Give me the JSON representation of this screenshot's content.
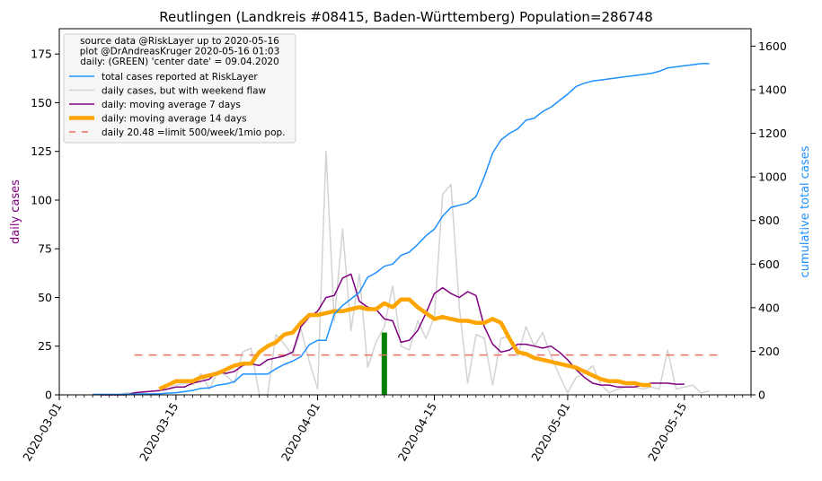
{
  "chart_data": {
    "type": "line",
    "title": "Reutlingen (Landkreis #08415, Baden-Württemberg) Population=286748",
    "ylabel_left": "daily cases",
    "ylabel_right": "cumulative total cases",
    "xlabel": "",
    "x_ticks": [
      "2020-03-01",
      "2020-03-15",
      "2020-04-01",
      "2020-04-15",
      "2020-05-01",
      "2020-05-15"
    ],
    "y_left_ticks": [
      "0",
      "25",
      "50",
      "75",
      "100",
      "125",
      "150",
      "175"
    ],
    "y_right_ticks": [
      "0",
      "200",
      "400",
      "600",
      "800",
      "1000",
      "1200",
      "1400",
      "1600"
    ],
    "ylim_left": [
      0,
      188
    ],
    "ylim_right": [
      0,
      1680
    ],
    "xlim": [
      "2020-03-01",
      "2020-05-23"
    ],
    "grid": false,
    "legend_position": "top-left",
    "legend_header": [
      "source data @RiskLayer up to 2020-05-16",
      "plot @DrAndreasKruger 2020-05-16 01:03",
      "daily: (GREEN) 'center date' = 09.04.2020"
    ],
    "colors": {
      "total": "#1e90ff",
      "daily": "#d3d3d3",
      "ma7": "#800080",
      "ma14": "#ffa500",
      "limit": "#ec7063",
      "center": "#008000",
      "left_label": "#800080",
      "right_label": "#1e90ff"
    },
    "center_date": "2020-04-09",
    "center_value": 32,
    "series": [
      {
        "name": "total cases reported at RiskLayer",
        "key": "total",
        "axis": "right",
        "x": [
          "2020-03-05",
          "2020-03-06",
          "2020-03-07",
          "2020-03-08",
          "2020-03-09",
          "2020-03-10",
          "2020-03-11",
          "2020-03-12",
          "2020-03-13",
          "2020-03-14",
          "2020-03-15",
          "2020-03-16",
          "2020-03-17",
          "2020-03-18",
          "2020-03-19",
          "2020-03-20",
          "2020-03-21",
          "2020-03-22",
          "2020-03-23",
          "2020-03-24",
          "2020-03-25",
          "2020-03-26",
          "2020-03-27",
          "2020-03-28",
          "2020-03-29",
          "2020-03-30",
          "2020-03-31",
          "2020-04-01",
          "2020-04-02",
          "2020-04-03",
          "2020-04-04",
          "2020-04-05",
          "2020-04-06",
          "2020-04-07",
          "2020-04-08",
          "2020-04-09",
          "2020-04-10",
          "2020-04-11",
          "2020-04-12",
          "2020-04-13",
          "2020-04-14",
          "2020-04-15",
          "2020-04-16",
          "2020-04-17",
          "2020-04-18",
          "2020-04-19",
          "2020-04-20",
          "2020-04-21",
          "2020-04-22",
          "2020-04-23",
          "2020-04-24",
          "2020-04-25",
          "2020-04-26",
          "2020-04-27",
          "2020-04-28",
          "2020-04-29",
          "2020-04-30",
          "2020-05-01",
          "2020-05-02",
          "2020-05-03",
          "2020-05-04",
          "2020-05-05",
          "2020-05-06",
          "2020-05-07",
          "2020-05-08",
          "2020-05-09",
          "2020-05-10",
          "2020-05-11",
          "2020-05-12",
          "2020-05-13",
          "2020-05-14",
          "2020-05-15",
          "2020-05-16",
          "2020-05-17",
          "2020-05-18"
        ],
        "values": [
          2,
          2,
          2,
          2,
          3,
          3,
          4,
          4,
          5,
          8,
          10,
          15,
          20,
          30,
          32,
          45,
          50,
          60,
          95,
          95,
          95,
          95,
          120,
          140,
          155,
          175,
          230,
          250,
          250,
          370,
          410,
          440,
          470,
          540,
          560,
          590,
          600,
          640,
          655,
          690,
          730,
          760,
          820,
          860,
          870,
          880,
          910,
          1000,
          1110,
          1170,
          1200,
          1220,
          1260,
          1270,
          1300,
          1320,
          1350,
          1380,
          1415,
          1430,
          1440,
          1445,
          1450,
          1455,
          1460,
          1465,
          1470,
          1475,
          1485,
          1500,
          1505,
          1510,
          1515,
          1520,
          1520
        ]
      },
      {
        "name": "daily cases, but with weekend flaw",
        "key": "daily",
        "axis": "left",
        "x": [
          "2020-03-05",
          "2020-03-06",
          "2020-03-07",
          "2020-03-08",
          "2020-03-09",
          "2020-03-10",
          "2020-03-11",
          "2020-03-12",
          "2020-03-13",
          "2020-03-14",
          "2020-03-15",
          "2020-03-16",
          "2020-03-17",
          "2020-03-18",
          "2020-03-19",
          "2020-03-20",
          "2020-03-21",
          "2020-03-22",
          "2020-03-23",
          "2020-03-24",
          "2020-03-25",
          "2020-03-26",
          "2020-03-27",
          "2020-03-28",
          "2020-03-29",
          "2020-03-30",
          "2020-03-31",
          "2020-04-01",
          "2020-04-02",
          "2020-04-03",
          "2020-04-04",
          "2020-04-05",
          "2020-04-06",
          "2020-04-07",
          "2020-04-08",
          "2020-04-09",
          "2020-04-10",
          "2020-04-11",
          "2020-04-12",
          "2020-04-13",
          "2020-04-14",
          "2020-04-15",
          "2020-04-16",
          "2020-04-17",
          "2020-04-18",
          "2020-04-19",
          "2020-04-20",
          "2020-04-21",
          "2020-04-22",
          "2020-04-23",
          "2020-04-24",
          "2020-04-25",
          "2020-04-26",
          "2020-04-27",
          "2020-04-28",
          "2020-04-29",
          "2020-04-30",
          "2020-05-01",
          "2020-05-02",
          "2020-05-03",
          "2020-05-04",
          "2020-05-05",
          "2020-05-06",
          "2020-05-07",
          "2020-05-08",
          "2020-05-09",
          "2020-05-10",
          "2020-05-11",
          "2020-05-12",
          "2020-05-13",
          "2020-05-14",
          "2020-05-15",
          "2020-05-16",
          "2020-05-17",
          "2020-05-18"
        ],
        "values": [
          0,
          0,
          0,
          0,
          1,
          1,
          1,
          2,
          2,
          3,
          5,
          6,
          5,
          11,
          3,
          12,
          10,
          6,
          22,
          24,
          0,
          0,
          31,
          26,
          20,
          34,
          17,
          3,
          125,
          38,
          85,
          33,
          62,
          14,
          27,
          35,
          56,
          25,
          23,
          38,
          29,
          40,
          103,
          108,
          45,
          6,
          31,
          29,
          5,
          29,
          30,
          20,
          35,
          25,
          32,
          20,
          10,
          1,
          9,
          11,
          15,
          5,
          1,
          3,
          4,
          4,
          3,
          4,
          3,
          23,
          3,
          4,
          5,
          1,
          2
        ]
      },
      {
        "name": "daily: moving average 7 days",
        "key": "ma7",
        "axis": "left",
        "x": [
          "2020-03-06",
          "2020-03-07",
          "2020-03-08",
          "2020-03-09",
          "2020-03-10",
          "2020-03-11",
          "2020-03-12",
          "2020-03-13",
          "2020-03-14",
          "2020-03-15",
          "2020-03-16",
          "2020-03-17",
          "2020-03-18",
          "2020-03-19",
          "2020-03-20",
          "2020-03-21",
          "2020-03-22",
          "2020-03-23",
          "2020-03-24",
          "2020-03-25",
          "2020-03-26",
          "2020-03-27",
          "2020-03-28",
          "2020-03-29",
          "2020-03-30",
          "2020-03-31",
          "2020-04-01",
          "2020-04-02",
          "2020-04-03",
          "2020-04-04",
          "2020-04-05",
          "2020-04-06",
          "2020-04-07",
          "2020-04-08",
          "2020-04-09",
          "2020-04-10",
          "2020-04-11",
          "2020-04-12",
          "2020-04-13",
          "2020-04-14",
          "2020-04-15",
          "2020-04-16",
          "2020-04-17",
          "2020-04-18",
          "2020-04-19",
          "2020-04-20",
          "2020-04-21",
          "2020-04-22",
          "2020-04-23",
          "2020-04-24",
          "2020-04-25",
          "2020-04-26",
          "2020-04-27",
          "2020-04-28",
          "2020-04-29",
          "2020-04-30",
          "2020-05-01",
          "2020-05-02",
          "2020-05-03",
          "2020-05-04",
          "2020-05-05",
          "2020-05-06",
          "2020-05-07",
          "2020-05-08",
          "2020-05-09",
          "2020-05-10",
          "2020-05-11",
          "2020-05-12",
          "2020-05-13",
          "2020-05-14",
          "2020-05-15"
        ],
        "values": [
          0,
          0,
          0,
          0,
          1,
          1.5,
          1.8,
          2.2,
          3,
          4,
          4,
          6,
          7,
          8,
          12,
          11,
          12,
          15,
          16,
          15,
          18,
          19,
          20,
          22,
          35,
          40,
          43,
          50,
          51,
          60,
          62,
          48,
          45,
          44,
          39,
          38,
          27,
          28,
          33,
          42,
          52,
          55,
          52,
          50,
          53,
          51,
          35,
          26,
          22,
          23,
          26,
          26,
          25,
          24,
          25,
          22,
          18,
          13,
          9,
          6,
          5,
          5,
          4,
          4,
          4,
          5,
          6,
          6,
          6,
          5.5,
          5.5
        ]
      },
      {
        "name": "daily: moving average 14 days",
        "key": "ma14",
        "axis": "left",
        "x": [
          "2020-03-13",
          "2020-03-14",
          "2020-03-15",
          "2020-03-16",
          "2020-03-17",
          "2020-03-18",
          "2020-03-19",
          "2020-03-20",
          "2020-03-21",
          "2020-03-22",
          "2020-03-23",
          "2020-03-24",
          "2020-03-25",
          "2020-03-26",
          "2020-03-27",
          "2020-03-28",
          "2020-03-29",
          "2020-03-30",
          "2020-03-31",
          "2020-04-01",
          "2020-04-02",
          "2020-04-03",
          "2020-04-04",
          "2020-04-05",
          "2020-04-06",
          "2020-04-07",
          "2020-04-08",
          "2020-04-09",
          "2020-04-10",
          "2020-04-11",
          "2020-04-12",
          "2020-04-13",
          "2020-04-14",
          "2020-04-15",
          "2020-04-16",
          "2020-04-17",
          "2020-04-18",
          "2020-04-19",
          "2020-04-20",
          "2020-04-21",
          "2020-04-22",
          "2020-04-23",
          "2020-04-24",
          "2020-04-25",
          "2020-04-26",
          "2020-04-27",
          "2020-04-28",
          "2020-04-29",
          "2020-04-30",
          "2020-05-01",
          "2020-05-02",
          "2020-05-03",
          "2020-05-04",
          "2020-05-05",
          "2020-05-06",
          "2020-05-07",
          "2020-05-08",
          "2020-05-09",
          "2020-05-10",
          "2020-05-11"
        ],
        "values": [
          3,
          5,
          7,
          7,
          7,
          9,
          10,
          11,
          13,
          15,
          16,
          16,
          22,
          25,
          27,
          31,
          32,
          37,
          41,
          41,
          42,
          43,
          43,
          44,
          45,
          44,
          44,
          47,
          45,
          49,
          49,
          45,
          42,
          39,
          40,
          39,
          38,
          38,
          37,
          37,
          39,
          37,
          29,
          22,
          21,
          19,
          18,
          17,
          16,
          15,
          14,
          12,
          10,
          8,
          7,
          7,
          6,
          6,
          5,
          5
        ]
      },
      {
        "name": "daily 20.48 =limit 500/week/1mio pop.",
        "key": "limit",
        "axis": "left",
        "x": [
          "2020-03-10",
          "2020-05-19"
        ],
        "values": [
          20.48,
          20.48
        ]
      }
    ]
  }
}
